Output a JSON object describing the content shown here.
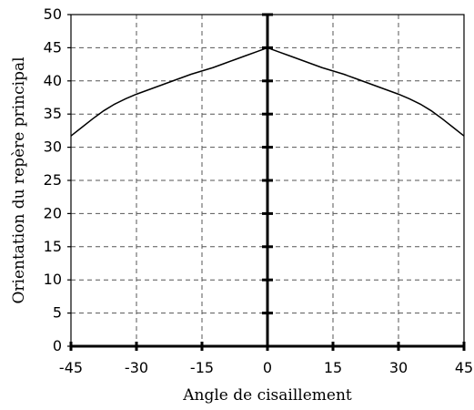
{
  "chart_data": {
    "type": "line",
    "title": "",
    "xlabel": "Angle de cisaillement",
    "ylabel": "Orientation du repère principal",
    "xlim": [
      -45,
      45
    ],
    "ylim": [
      0,
      50
    ],
    "xticks": [
      -45,
      -30,
      -15,
      0,
      15,
      30,
      45
    ],
    "yticks": [
      0,
      5,
      10,
      15,
      20,
      25,
      30,
      35,
      40,
      45,
      50
    ],
    "xtick_labels": [
      "-45",
      "-30",
      "-15",
      "0",
      "15",
      "30",
      "45"
    ],
    "ytick_labels": [
      "0",
      "5",
      "10",
      "15",
      "20",
      "25",
      "30",
      "35",
      "40",
      "45",
      "50"
    ],
    "grid": true,
    "grid_style": "dashed",
    "series": [
      {
        "x": [
          -45,
          -42.5,
          -40,
          -37.5,
          -35,
          -32.5,
          -30,
          -27.5,
          -25,
          -22.5,
          -20,
          -17.5,
          -15,
          -12.5,
          -10,
          -7.5,
          -5,
          -2.5,
          0,
          2.5,
          5,
          7.5,
          10,
          12.5,
          15,
          17.5,
          20,
          22.5,
          25,
          27.5,
          30,
          32.5,
          35,
          37.5,
          40,
          42.5,
          45
        ],
        "y": [
          31.7,
          33.0,
          34.3,
          35.5,
          36.5,
          37.3,
          38.0,
          38.6,
          39.2,
          39.8,
          40.4,
          41.0,
          41.5,
          42.0,
          42.6,
          43.2,
          43.8,
          44.4,
          45.0,
          44.4,
          43.8,
          43.2,
          42.6,
          42.0,
          41.5,
          41.0,
          40.4,
          39.8,
          39.2,
          38.6,
          38.0,
          37.3,
          36.5,
          35.5,
          34.3,
          33.0,
          31.7
        ]
      }
    ],
    "colors": {
      "line": "#000000",
      "grid": "#555555",
      "axis": "#000000"
    }
  }
}
